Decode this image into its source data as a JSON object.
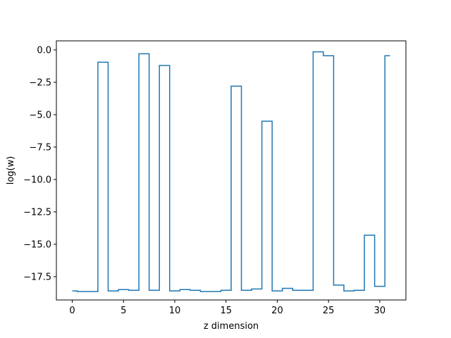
{
  "chart_data": {
    "type": "line",
    "style": "step",
    "title": "",
    "xlabel": "z dimension",
    "ylabel": "log(w)",
    "xlim": [
      -1.55,
      32.55
    ],
    "ylim": [
      -19.3,
      0.7
    ],
    "xticks": [
      0,
      5,
      10,
      15,
      20,
      25,
      30
    ],
    "xtick_labels": [
      "0",
      "5",
      "10",
      "15",
      "20",
      "25",
      "30"
    ],
    "yticks": [
      0.0,
      -2.5,
      -5.0,
      -7.5,
      -10.0,
      -12.5,
      -15.0,
      -17.5
    ],
    "ytick_labels": [
      "0.0",
      "−2.5",
      "−5.0",
      "−7.5",
      "−10.0",
      "−12.5",
      "−15.0",
      "−17.5"
    ],
    "grid": false,
    "series": [
      {
        "color": "#1f77b4",
        "x": [
          0,
          1,
          2,
          3,
          4,
          5,
          6,
          7,
          8,
          9,
          10,
          11,
          12,
          13,
          14,
          15,
          16,
          17,
          18,
          19,
          20,
          21,
          22,
          23,
          24,
          25,
          26,
          27,
          28,
          29,
          30,
          31
        ],
        "values": [
          -18.6,
          -18.65,
          -18.65,
          -0.95,
          -18.6,
          -18.5,
          -18.55,
          -0.3,
          -18.55,
          -1.2,
          -18.6,
          -18.5,
          -18.55,
          -18.65,
          -18.65,
          -18.55,
          -2.8,
          -18.55,
          -18.45,
          -5.5,
          -18.6,
          -18.4,
          -18.55,
          -18.55,
          -0.15,
          -0.45,
          -18.15,
          -18.6,
          -18.55,
          -14.3,
          -18.25,
          -0.45
        ]
      }
    ]
  }
}
